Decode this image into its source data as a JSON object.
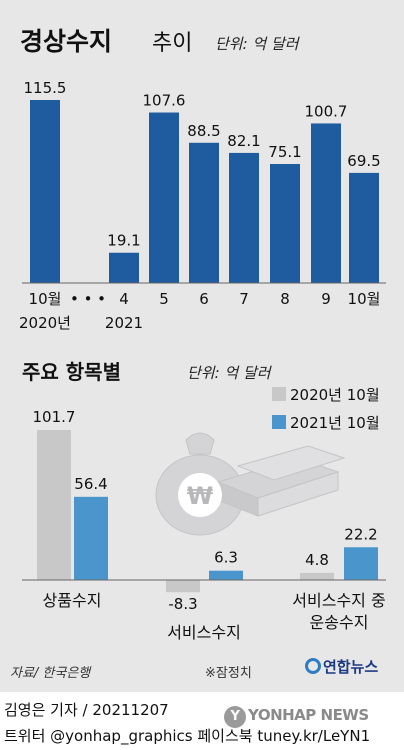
{
  "chart_data": [
    {
      "type": "bar",
      "title": "경상수지",
      "subtitle": "추이",
      "unit": "단위: 억 달러",
      "categories": [
        "10월\n2020년",
        "…",
        "4\n2021",
        "5",
        "6",
        "7",
        "8",
        "9",
        "10월"
      ],
      "values": [
        115.5,
        null,
        19.1,
        107.6,
        88.5,
        82.1,
        75.1,
        100.7,
        69.5
      ],
      "value_labels": [
        "115.5",
        "",
        "19.1",
        "107.6",
        "88.5",
        "82.1",
        "75.1",
        "100.7",
        "69.5"
      ],
      "tick_lines": [
        [
          "10월",
          "2020년"
        ],
        [
          "• • •",
          ""
        ],
        [
          "4",
          "2021"
        ],
        [
          "5",
          ""
        ],
        [
          "6",
          ""
        ],
        [
          "7",
          ""
        ],
        [
          "8",
          ""
        ],
        [
          "9",
          ""
        ],
        [
          "10월",
          ""
        ]
      ],
      "color": "#1f5b9f",
      "ylim": [
        0,
        120
      ]
    },
    {
      "type": "bar",
      "title": "주요 항목별",
      "unit": "단위: 억 달러",
      "categories": [
        "상품수지",
        "서비스수지",
        "서비스수지 중 운송수지"
      ],
      "category_lines": [
        [
          "상품수지"
        ],
        [
          "서비스수지"
        ],
        [
          "서비스수지 중",
          "운송수지"
        ]
      ],
      "series": [
        {
          "name": "2020년 10월",
          "values": [
            101.7,
            -8.3,
            4.8
          ],
          "labels": [
            "101.7",
            "-8.3",
            "4.8"
          ],
          "color": "#c8c8c8"
        },
        {
          "name": "2021년 10월",
          "values": [
            56.4,
            6.3,
            22.2
          ],
          "labels": [
            "56.4",
            "6.3",
            "22.2"
          ],
          "color": "#4a95cc"
        }
      ],
      "legend_position": "top-right",
      "ylim": [
        -10,
        110
      ]
    }
  ],
  "footer": {
    "source": "자료/ 한국은행",
    "note": "※잠정치",
    "logo": "연합뉴스",
    "credit_line1": "김영은 기자 / 20211207",
    "credit_line2": "트위터 @yonhap_graphics  페이스북 tuney.kr/LeYN1",
    "watermark": "YONHAP NEWS"
  }
}
